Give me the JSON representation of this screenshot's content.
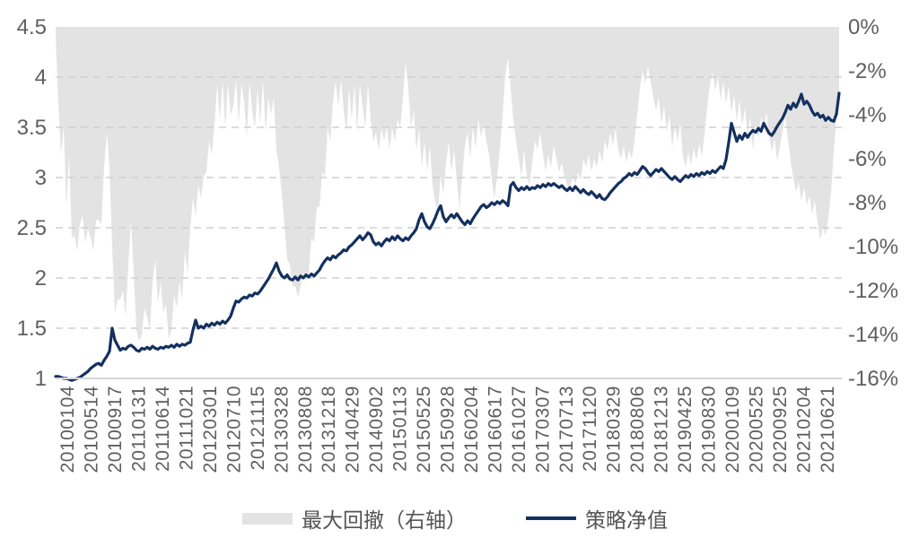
{
  "chart_data": {
    "type": "area+line",
    "title": "",
    "legend_position": "bottom",
    "grid": "dashed-horizontal",
    "left_axis": {
      "min": 1,
      "max": 4.5,
      "ticks": [
        "4.5",
        "4",
        "3.5",
        "3",
        "2.5",
        "2",
        "1.5",
        "1"
      ]
    },
    "right_axis": {
      "min": -16,
      "max": 0,
      "ticks": [
        "0%",
        "-2%",
        "-4%",
        "-6%",
        "-8%",
        "-10%",
        "-12%",
        "-14%",
        "-16%"
      ]
    },
    "x_ticks": [
      "20100104",
      "20100514",
      "20100917",
      "20110131",
      "20110614",
      "20111021",
      "20120301",
      "20120710",
      "20121115",
      "20130328",
      "20130808",
      "20131218",
      "20140429",
      "20140902",
      "20150113",
      "20150525",
      "20150928",
      "20160204",
      "20160617",
      "20161027",
      "20170307",
      "20170713",
      "20171120",
      "20180329",
      "20180806",
      "20181213",
      "20190425",
      "20190830",
      "20200109",
      "20200525",
      "20200925",
      "20210204",
      "20210621"
    ],
    "series": [
      {
        "name": "最大回撤（右轴）",
        "type": "area",
        "axis": "right",
        "color": "#e3e3e4",
        "values": [
          -0.4,
          -3.5,
          -5.8,
          -4.5,
          -8.2,
          -5.8,
          -9.6,
          -9.5,
          -10.2,
          -9,
          -8.6,
          -9.8,
          -9.2,
          -9.6,
          -10.2,
          -8.8,
          -8.8,
          -9,
          -6.4,
          -4.8,
          -6.4,
          -10,
          -13,
          -12.4,
          -12.4,
          -12,
          -13.2,
          -10.8,
          -8.8,
          -11.2,
          -13.8,
          -14.3,
          -14,
          -12.8,
          -13.2,
          -13.8,
          -11.6,
          -10.6,
          -12.6,
          -11.6,
          -13,
          -12.6,
          -14.2,
          -13.8,
          -12.2,
          -12.8,
          -11.6,
          -12.4,
          -10.2,
          -11.2,
          -9.2,
          -7.8,
          -8.6,
          -7.2,
          -7.8,
          -6.8,
          -6.6,
          -5.2,
          -5.8,
          -4.4,
          -2.6,
          -4.2,
          -2.4,
          -4.6,
          -2.6,
          -4,
          -3.6,
          -2.4,
          -4.4,
          -2.6,
          -3.4,
          -5,
          -2.5,
          -3.8,
          -4.6,
          -2.8,
          -4.4,
          -2.4,
          -4.8,
          -3.2,
          -4,
          -3.2,
          -5.6,
          -6.4,
          -7.6,
          -9,
          -10.6,
          -10.8,
          -11.8,
          -11.8,
          -12.3,
          -11.8,
          -11.2,
          -11.6,
          -11.2,
          -9.6,
          -9.8,
          -8.2,
          -8.2,
          -6.6,
          -6.8,
          -4.6,
          -5.2,
          -3.4,
          -2.5,
          -3.6,
          -2.4,
          -3.8,
          -4.8,
          -2.8,
          -4.2,
          -2.6,
          -4.8,
          -2.6,
          -3.6,
          -4.6,
          -2.6,
          -4.2,
          -5.2,
          -4.8,
          -5.6,
          -4.6,
          -5.2,
          -4.5,
          -5.6,
          -4.6,
          -5.2,
          -4.2,
          -4.6,
          -3.2,
          -1.6,
          -2.8,
          -4.6,
          -3.8,
          -5.6,
          -4.6,
          -6.4,
          -5.2,
          -6.6,
          -5.4,
          -7.2,
          -8,
          -8.4,
          -6.8,
          -7.6,
          -6.2,
          -5.2,
          -6.6,
          -5.6,
          -7,
          -8.3,
          -6.8,
          -5.4,
          -4.8,
          -6,
          -4.5,
          -5.5,
          -4.2,
          -5,
          -4.4,
          -5.2,
          -5.8,
          -7,
          -7.8,
          -6.8,
          -5.6,
          -4,
          -2.2,
          -1.4,
          -2.8,
          -4.2,
          -5.2,
          -6,
          -6.8,
          -5.6,
          -6.8,
          -7.2,
          -6.2,
          -5.2,
          -5.6,
          -4.8,
          -5.8,
          -6.6,
          -5.8,
          -6.4,
          -5.4,
          -6,
          -6.6,
          -6.2,
          -6.8,
          -7.2,
          -7.4,
          -6.8,
          -7.2,
          -6.6,
          -7,
          -6,
          -6.4,
          -5.8,
          -6.6,
          -6,
          -6.4,
          -5.6,
          -6.2,
          -5.2,
          -5.6,
          -4.8,
          -5.4,
          -4.6,
          -5.6,
          -6,
          -5.4,
          -6.2,
          -5.6,
          -6,
          -5.2,
          -4,
          -2.8,
          -2,
          -2.6,
          -1.8,
          -2.5,
          -3.2,
          -3.8,
          -3.2,
          -4.4,
          -3.6,
          -4.8,
          -4,
          -5.5,
          -4.5,
          -5.2,
          -4.4,
          -5.9,
          -6.4,
          -5.7,
          -6.3,
          -5.5,
          -6.1,
          -5.3,
          -5.9,
          -4.9,
          -3.7,
          -2.6,
          -2.1,
          -2.9,
          -2.3,
          -3.3,
          -2.5,
          -3.5,
          -2.7,
          -3.9,
          -3.1,
          -4.3,
          -3.3,
          -4.5,
          -3.7,
          -4.9,
          -4.1,
          -5.6,
          -4.5,
          -5.1,
          -4.1,
          -4.7,
          -3.9,
          -4.9,
          -5.7,
          -5.1,
          -6.1,
          -5.5,
          -4.7,
          -4.1,
          -5.1,
          -6.1,
          -6.9,
          -7.5,
          -7.1,
          -7.9,
          -7.3,
          -8.1,
          -7.7,
          -8.5,
          -7.9,
          -8.9,
          -9.7,
          -9.1,
          -9.5,
          -8.7,
          -7.5,
          -5.7,
          -4.1,
          -3.2
        ]
      },
      {
        "name": "策略净值",
        "type": "line",
        "axis": "left",
        "color": "#14305f",
        "values": [
          1.02,
          1.02,
          1.01,
          1,
          1,
          0.99,
          0.98,
          0.99,
          1,
          1.01,
          1.03,
          1.05,
          1.07,
          1.1,
          1.12,
          1.14,
          1.15,
          1.13,
          1.18,
          1.22,
          1.27,
          1.5,
          1.38,
          1.33,
          1.28,
          1.3,
          1.29,
          1.32,
          1.33,
          1.31,
          1.28,
          1.27,
          1.3,
          1.29,
          1.31,
          1.29,
          1.32,
          1.3,
          1.29,
          1.31,
          1.3,
          1.32,
          1.31,
          1.33,
          1.31,
          1.34,
          1.32,
          1.34,
          1.33,
          1.35,
          1.36,
          1.48,
          1.58,
          1.5,
          1.52,
          1.5,
          1.54,
          1.52,
          1.55,
          1.53,
          1.56,
          1.54,
          1.57,
          1.55,
          1.58,
          1.62,
          1.7,
          1.77,
          1.76,
          1.79,
          1.81,
          1.8,
          1.83,
          1.82,
          1.85,
          1.84,
          1.87,
          1.91,
          1.95,
          1.99,
          2.04,
          2.09,
          2.15,
          2.07,
          2.02,
          2,
          2.03,
          1.99,
          1.98,
          2.01,
          1.98,
          2.02,
          2,
          2.03,
          2.01,
          2.04,
          2.02,
          2.05,
          2.08,
          2.13,
          2.17,
          2.2,
          2.18,
          2.22,
          2.2,
          2.23,
          2.25,
          2.28,
          2.27,
          2.31,
          2.33,
          2.36,
          2.39,
          2.42,
          2.38,
          2.41,
          2.45,
          2.43,
          2.36,
          2.33,
          2.35,
          2.32,
          2.36,
          2.39,
          2.37,
          2.41,
          2.38,
          2.42,
          2.39,
          2.37,
          2.4,
          2.38,
          2.42,
          2.45,
          2.49,
          2.58,
          2.64,
          2.56,
          2.51,
          2.49,
          2.54,
          2.6,
          2.67,
          2.72,
          2.61,
          2.56,
          2.6,
          2.63,
          2.6,
          2.64,
          2.6,
          2.56,
          2.53,
          2.57,
          2.54,
          2.59,
          2.63,
          2.67,
          2.71,
          2.73,
          2.7,
          2.72,
          2.75,
          2.73,
          2.76,
          2.74,
          2.77,
          2.75,
          2.72,
          2.92,
          2.95,
          2.9,
          2.87,
          2.9,
          2.88,
          2.91,
          2.88,
          2.9,
          2.89,
          2.92,
          2.9,
          2.93,
          2.91,
          2.94,
          2.92,
          2.94,
          2.92,
          2.9,
          2.92,
          2.89,
          2.87,
          2.9,
          2.87,
          2.91,
          2.88,
          2.85,
          2.88,
          2.85,
          2.83,
          2.86,
          2.83,
          2.8,
          2.83,
          2.79,
          2.78,
          2.81,
          2.85,
          2.88,
          2.91,
          2.94,
          2.96,
          2.99,
          3.01,
          3.04,
          3.02,
          3.05,
          3.03,
          3.07,
          3.11,
          3.09,
          3.05,
          3.02,
          3.05,
          3.08,
          3.06,
          3.09,
          3.06,
          3.03,
          3,
          2.98,
          3.01,
          2.98,
          2.96,
          2.99,
          3.02,
          3,
          3.03,
          3.01,
          3.04,
          3.02,
          3.05,
          3.03,
          3.06,
          3.04,
          3.07,
          3.05,
          3.08,
          3.11,
          3.09,
          3.18,
          3.35,
          3.54,
          3.45,
          3.36,
          3.42,
          3.38,
          3.44,
          3.4,
          3.44,
          3.47,
          3.45,
          3.49,
          3.46,
          3.54,
          3.49,
          3.44,
          3.42,
          3.46,
          3.51,
          3.55,
          3.59,
          3.65,
          3.72,
          3.68,
          3.74,
          3.7,
          3.76,
          3.83,
          3.73,
          3.76,
          3.72,
          3.66,
          3.62,
          3.64,
          3.6,
          3.62,
          3.57,
          3.6,
          3.57,
          3.56,
          3.63,
          3.84
        ]
      }
    ]
  },
  "legend": {
    "drawdown_label": "最大回撤（右轴）",
    "netvalue_label": "策略净值"
  },
  "colors": {
    "area": "#e3e3e4",
    "line": "#14305f",
    "gridline": "#d0d0d0",
    "axis_line": "#d6d6d6",
    "tick_text": "#5f5f5f",
    "legend_text": "#555555",
    "background": "#ffffff"
  }
}
